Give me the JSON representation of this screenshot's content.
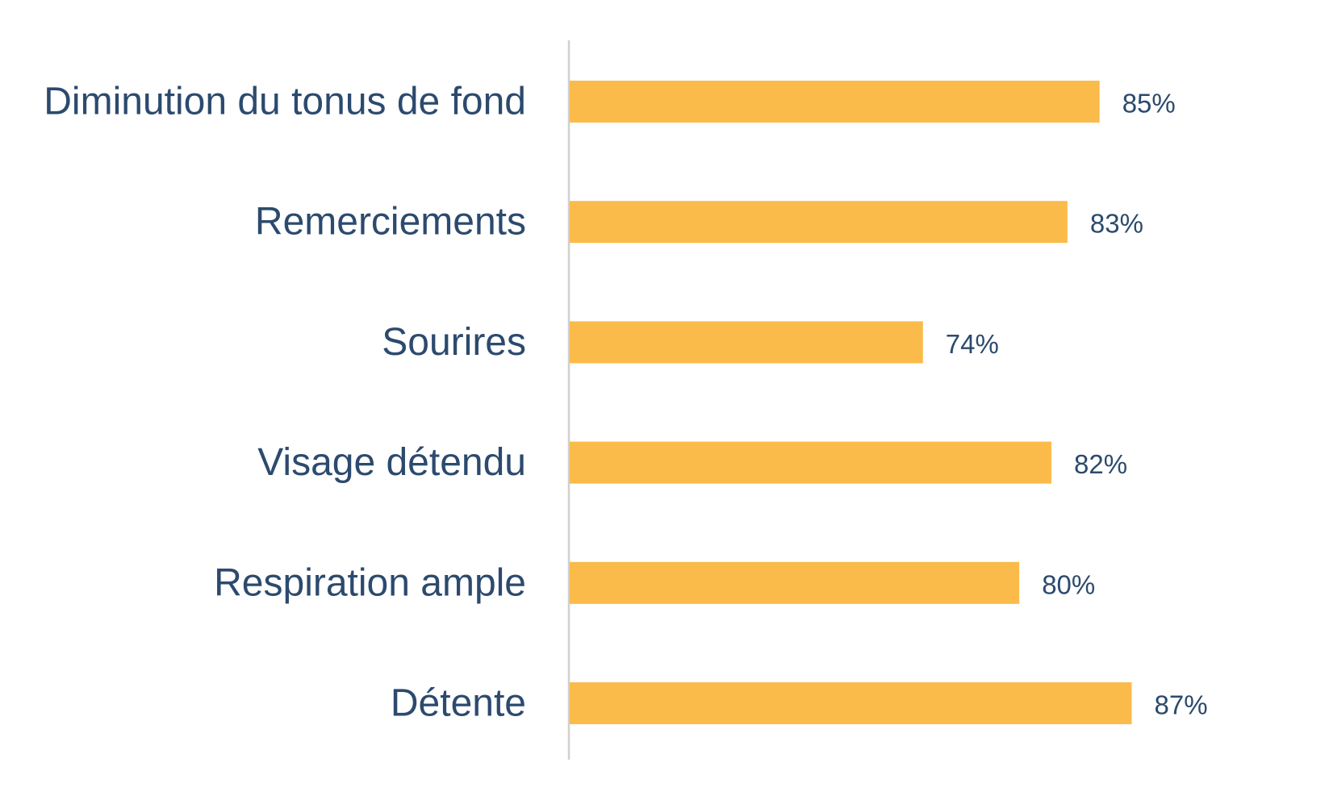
{
  "chart_data": {
    "type": "bar",
    "orientation": "horizontal",
    "categories": [
      "Diminution du tonus de fond",
      "Remerciements",
      "Sourires",
      "Visage détendu",
      "Respiration ample",
      "Détente"
    ],
    "values": [
      85,
      83,
      74,
      82,
      80,
      87
    ],
    "data_labels": [
      "85%",
      "83%",
      "74%",
      "82%",
      "80%",
      "87%"
    ],
    "unit": "%",
    "xlim": [
      52,
      100
    ],
    "title": "",
    "xlabel": "",
    "ylabel": "",
    "grid": false,
    "legend": "none",
    "colors": {
      "bar": "#fbbb4a",
      "text": "#2c4a6e",
      "axis": "#d0d0d0"
    }
  }
}
